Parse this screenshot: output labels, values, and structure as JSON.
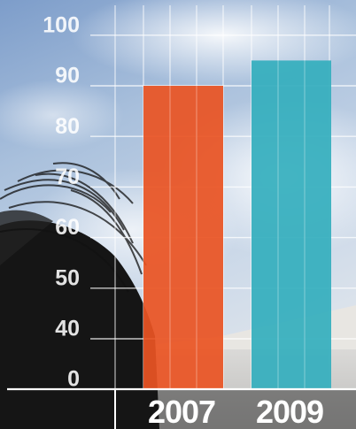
{
  "chart_data": {
    "type": "bar",
    "categories": [
      "2007",
      "2009"
    ],
    "values": [
      90,
      95
    ],
    "colors": [
      "#ea5424",
      "#35aebd"
    ],
    "y_ticks": [
      "0",
      "40",
      "50",
      "60",
      "70",
      "80",
      "90",
      "100"
    ],
    "title": "",
    "xlabel": "",
    "ylabel": "",
    "ylim": [
      0,
      100
    ],
    "grid": true
  }
}
